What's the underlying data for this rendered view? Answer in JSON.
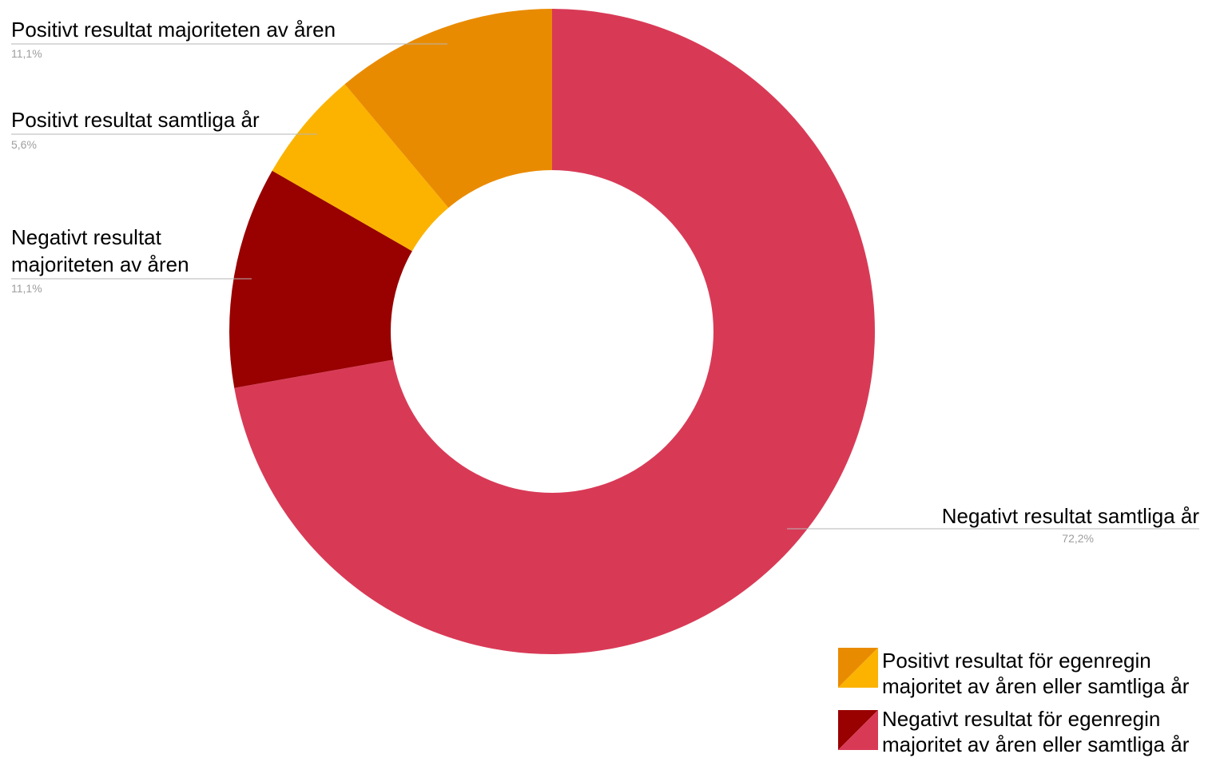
{
  "chart_data": {
    "type": "pie",
    "donut": true,
    "start_angle_deg": 0,
    "direction": "clockwise",
    "slices": [
      {
        "label_lines": [
          "Negativt resultat samtliga år"
        ],
        "value": 72.2,
        "pct_label": "72,2%",
        "color": "#d83a56"
      },
      {
        "label_lines": [
          "Negativt resultat",
          "majoriteten av åren"
        ],
        "value": 11.1,
        "pct_label": "11,1%",
        "color": "#990000"
      },
      {
        "label_lines": [
          "Positivt resultat samtliga år"
        ],
        "value": 5.6,
        "pct_label": "5,6%",
        "color": "#fbb300"
      },
      {
        "label_lines": [
          "Positivt resultat majoriteten av åren"
        ],
        "value": 11.1,
        "pct_label": "11,1%",
        "color": "#e98b00"
      }
    ],
    "legend": {
      "position": "bottom-right",
      "entries": [
        {
          "lines": [
            "Positivt resultat för egenregin",
            "majoritet av åren eller samtliga år"
          ],
          "colors": [
            "#fbb300",
            "#e98b00"
          ]
        },
        {
          "lines": [
            "Negativt resultat för egenregin",
            "majoritet av åren eller samtliga år"
          ],
          "colors": [
            "#d83a56",
            "#990000"
          ]
        }
      ]
    }
  }
}
